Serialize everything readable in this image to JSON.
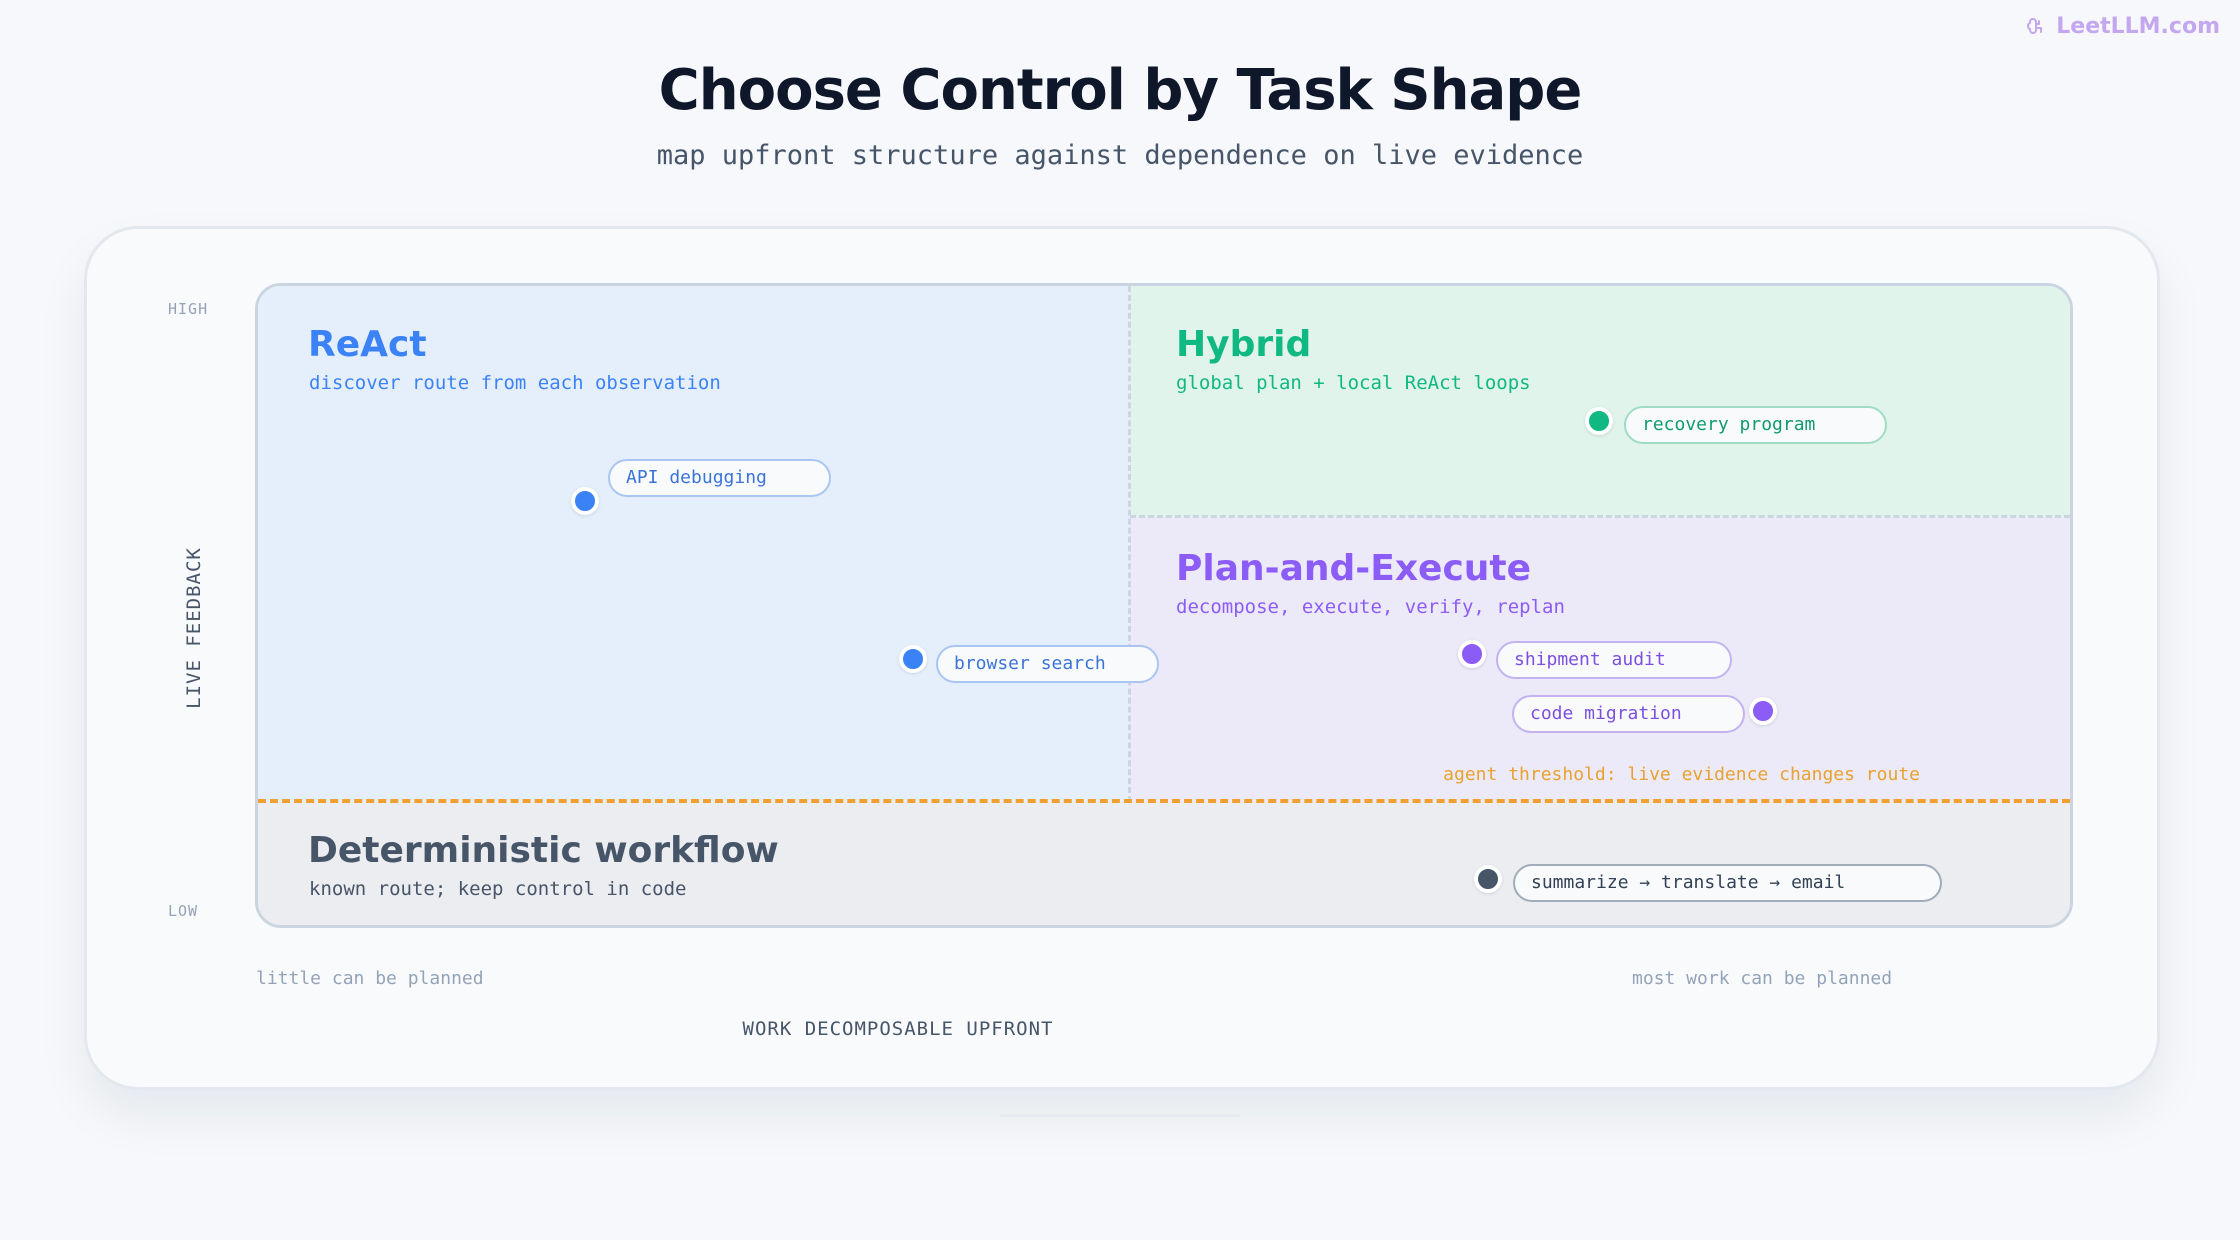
{
  "logo": {
    "text": "LeetLLM.com",
    "icon": "brain-icon"
  },
  "title": "Choose Control by Task Shape",
  "subtitle": "map upfront structure against dependence on live evidence",
  "axes": {
    "y_label": "LIVE FEEDBACK",
    "y_high": "HIGH",
    "y_low": "LOW",
    "x_label": "WORK DECOMPOSABLE UPFRONT",
    "x_low_note": "little can be planned",
    "x_high_note": "most work can be planned"
  },
  "threshold_label": "agent threshold: live evidence changes route",
  "regions": {
    "react": {
      "title": "ReAct",
      "desc": "discover route from each observation",
      "color": "#3b82f6"
    },
    "hybrid": {
      "title": "Hybrid",
      "desc": "global plan + local ReAct loops",
      "color": "#10b981"
    },
    "plan": {
      "title": "Plan-and-Execute",
      "desc": "decompose, execute, verify, replan",
      "color": "#8b5cf6"
    },
    "deterministic": {
      "title": "Deterministic workflow",
      "desc": "known route; keep control in code",
      "color": "#475569"
    }
  },
  "examples": {
    "api_debugging": "API debugging",
    "browser_search": "browser search",
    "recovery_program": "recovery program",
    "shipment_audit": "shipment audit",
    "code_migration": "code migration",
    "summarize": "summarize → translate → email"
  },
  "colors": {
    "threshold": "#f0a030",
    "blue": "#3b82f6",
    "green": "#10b981",
    "purple": "#8b5cf6",
    "slate": "#475569"
  }
}
